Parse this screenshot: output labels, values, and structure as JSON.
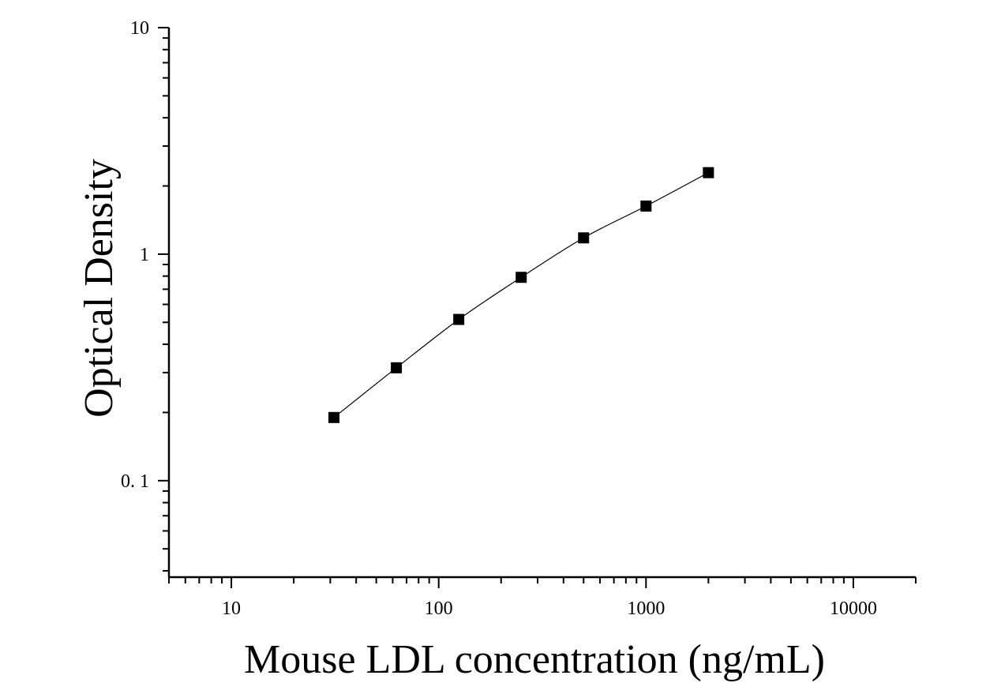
{
  "chart_data": {
    "type": "scatter",
    "title": "",
    "xlabel": "Mouse LDL concentration (ng/mL)",
    "ylabel": "Optical Density",
    "x_scale": "log",
    "y_scale": "log",
    "xlim": [
      5,
      20000
    ],
    "ylim": [
      0.0375,
      10
    ],
    "x_ticks": [
      {
        "value": 10,
        "label": "10"
      },
      {
        "value": 100,
        "label": "100"
      },
      {
        "value": 1000,
        "label": "1000"
      },
      {
        "value": 10000,
        "label": "10000"
      }
    ],
    "y_ticks": [
      {
        "value": 0.1,
        "label": "0. 1"
      },
      {
        "value": 1,
        "label": "1"
      },
      {
        "value": 10,
        "label": "10"
      }
    ],
    "grid": false,
    "legend": "none",
    "marker": "square",
    "colors": {
      "marker": "#000000",
      "line": "#000000",
      "axis": "#000000"
    },
    "series": [
      {
        "x": [
          31.25,
          62.5,
          125,
          250,
          500,
          1000,
          2000
        ],
        "y": [
          0.19,
          0.315,
          0.515,
          0.79,
          1.18,
          1.63,
          2.29
        ],
        "fit_line": true
      }
    ]
  }
}
